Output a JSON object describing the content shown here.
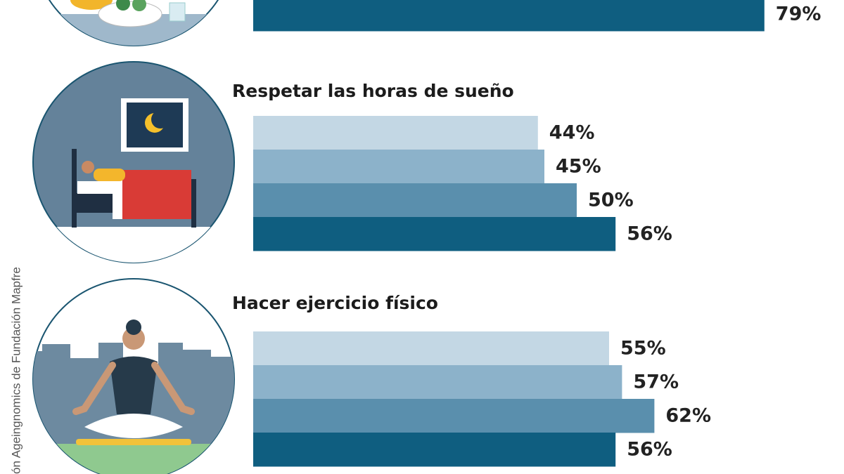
{
  "source": "ón Ageingnomics de Fundación Mapfre",
  "chart_data": [
    {
      "type": "bar",
      "values": [
        79
      ],
      "value_labels": [
        "79%"
      ],
      "colors": [
        "#0f5e80"
      ]
    },
    {
      "type": "bar",
      "title": "Respetar las horas de sueño",
      "values": [
        44,
        45,
        50,
        56
      ],
      "value_labels": [
        "44%",
        "45%",
        "50%",
        "56%"
      ],
      "colors": [
        "#c3d7e4",
        "#8cb2ca",
        "#5a8fad",
        "#0f5e80"
      ]
    },
    {
      "type": "bar",
      "title": "Hacer ejercicio físico",
      "values": [
        55,
        57,
        62,
        56
      ],
      "value_labels": [
        "55%",
        "57%",
        "62%",
        "56%"
      ],
      "colors": [
        "#c3d7e4",
        "#8cb2ca",
        "#5a8fad",
        "#0f5e80"
      ]
    }
  ]
}
